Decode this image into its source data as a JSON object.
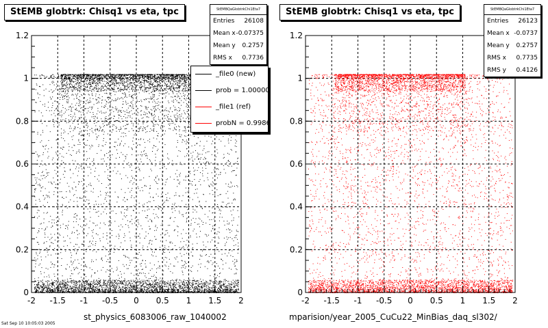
{
  "footnote": "Sat Sep 10 10:05:03 2005",
  "chart_data": [
    {
      "type": "scatter",
      "title": "StEMB globtrk: Chisq1 vs eta, tpc",
      "xlabel": "st_physics_6083006_raw_1040002",
      "ylabel": "",
      "xlim": [
        -2,
        2
      ],
      "ylim": [
        0,
        1.2
      ],
      "xticks": [
        "-2",
        "-1.5",
        "-1",
        "-0.5",
        "0",
        "0.5",
        "1",
        "1.5",
        "2"
      ],
      "yticks": [
        "0",
        "0.2",
        "0.4",
        "0.6",
        "0.8",
        "1",
        "1.2"
      ],
      "grid": true,
      "point_color": "#000000",
      "dense_bands": [
        {
          "y_range": [
            0.0,
            0.06
          ],
          "x_range": [
            -1.95,
            1.95
          ]
        },
        {
          "y_range": [
            0.96,
            1.02
          ],
          "x_range": [
            -1.45,
            1.05
          ]
        }
      ],
      "stats": {
        "name": "StEMBQaGlobtrkChi1Eta7",
        "rows": [
          {
            "label": "Entries",
            "value": "26108"
          },
          {
            "label": "Mean x",
            "value": "-0.07375"
          },
          {
            "label": "Mean y",
            "value": "0.2757"
          },
          {
            "label": "RMS x",
            "value": "0.7736"
          }
        ]
      },
      "legend": {
        "placement": "top-right",
        "entries": [
          {
            "label": "_file0 (new)",
            "color": "#000000"
          },
          {
            "label": "prob = 1.000000",
            "color": "#000000"
          },
          {
            "label": "_file1 (ref)",
            "color": "#ff0000"
          },
          {
            "label": "probN = 0.998600",
            "color": "#ff0000"
          }
        ]
      }
    },
    {
      "type": "scatter",
      "title": "StEMB globtrk: Chisq1 vs eta, tpc",
      "xlabel": "mparision/year_2005_CuCu22_MinBias_daq_sl302/",
      "ylabel": "",
      "xlim": [
        -2,
        2
      ],
      "ylim": [
        0,
        1.2
      ],
      "xticks": [
        "-2",
        "-1.5",
        "-1",
        "-0.5",
        "0",
        "0.5",
        "1",
        "1.5",
        "2"
      ],
      "yticks": [
        "0",
        "0.2",
        "0.4",
        "0.6",
        "0.8",
        "1",
        "1.2"
      ],
      "grid": true,
      "point_color": "#ff0000",
      "dense_bands": [
        {
          "y_range": [
            0.0,
            0.06
          ],
          "x_range": [
            -1.95,
            1.95
          ]
        },
        {
          "y_range": [
            0.96,
            1.02
          ],
          "x_range": [
            -1.45,
            1.05
          ]
        }
      ],
      "stats": {
        "name": "StEMBQaGlobtrkChi1Eta7",
        "rows": [
          {
            "label": "Entries",
            "value": "26123"
          },
          {
            "label": "Mean x",
            "value": "-0.0737"
          },
          {
            "label": "Mean y",
            "value": "0.2757"
          },
          {
            "label": "RMS x",
            "value": "0.7735"
          },
          {
            "label": "RMS y",
            "value": "0.4126"
          }
        ]
      }
    }
  ]
}
